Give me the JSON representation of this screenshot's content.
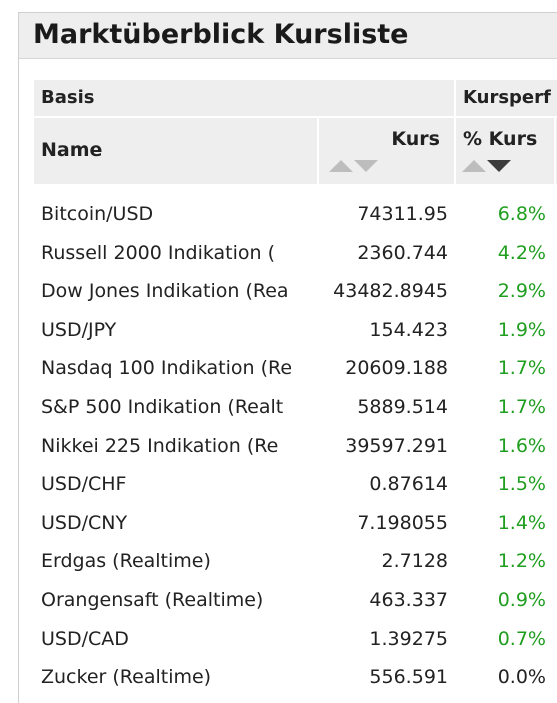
{
  "panel": {
    "title": "Marktüberblick Kursliste"
  },
  "table": {
    "group_headers": {
      "basis": "Basis",
      "performance": "Kursperf"
    },
    "column_headers": {
      "name": "Name",
      "kurs": "Kurs",
      "perf": "% Kurs"
    },
    "sort": {
      "kurs": "none",
      "perf": "descending"
    },
    "rows": [
      {
        "name": "Bitcoin/USD",
        "kurs": "74311.95",
        "perf": "6.8%"
      },
      {
        "name": "Russell 2000 Indikation (",
        "kurs": "2360.744",
        "perf": "4.2%"
      },
      {
        "name": "Dow Jones Indikation (Rea",
        "kurs": "43482.8945",
        "perf": "2.9%"
      },
      {
        "name": "USD/JPY",
        "kurs": "154.423",
        "perf": "1.9%"
      },
      {
        "name": "Nasdaq 100 Indikation (Re",
        "kurs": "20609.188",
        "perf": "1.7%"
      },
      {
        "name": "S&P 500 Indikation (Realt",
        "kurs": "5889.514",
        "perf": "1.7%"
      },
      {
        "name": "Nikkei 225 Indikation (Re",
        "kurs": "39597.291",
        "perf": "1.6%"
      },
      {
        "name": "USD/CHF",
        "kurs": "0.87614",
        "perf": "1.5%"
      },
      {
        "name": "USD/CNY",
        "kurs": "7.198055",
        "perf": "1.4%"
      },
      {
        "name": "Erdgas (Realtime)",
        "kurs": "2.7128",
        "perf": "1.2%"
      },
      {
        "name": "Orangensaft (Realtime)",
        "kurs": "463.337",
        "perf": "0.9%"
      },
      {
        "name": "USD/CAD",
        "kurs": "1.39275",
        "perf": "0.7%"
      },
      {
        "name": "Zucker (Realtime)",
        "kurs": "556.591",
        "perf": "0.0%"
      }
    ]
  },
  "colors": {
    "positive": "#1f9e1f",
    "neutral": "#222222",
    "header_bg": "#eeeeee"
  }
}
